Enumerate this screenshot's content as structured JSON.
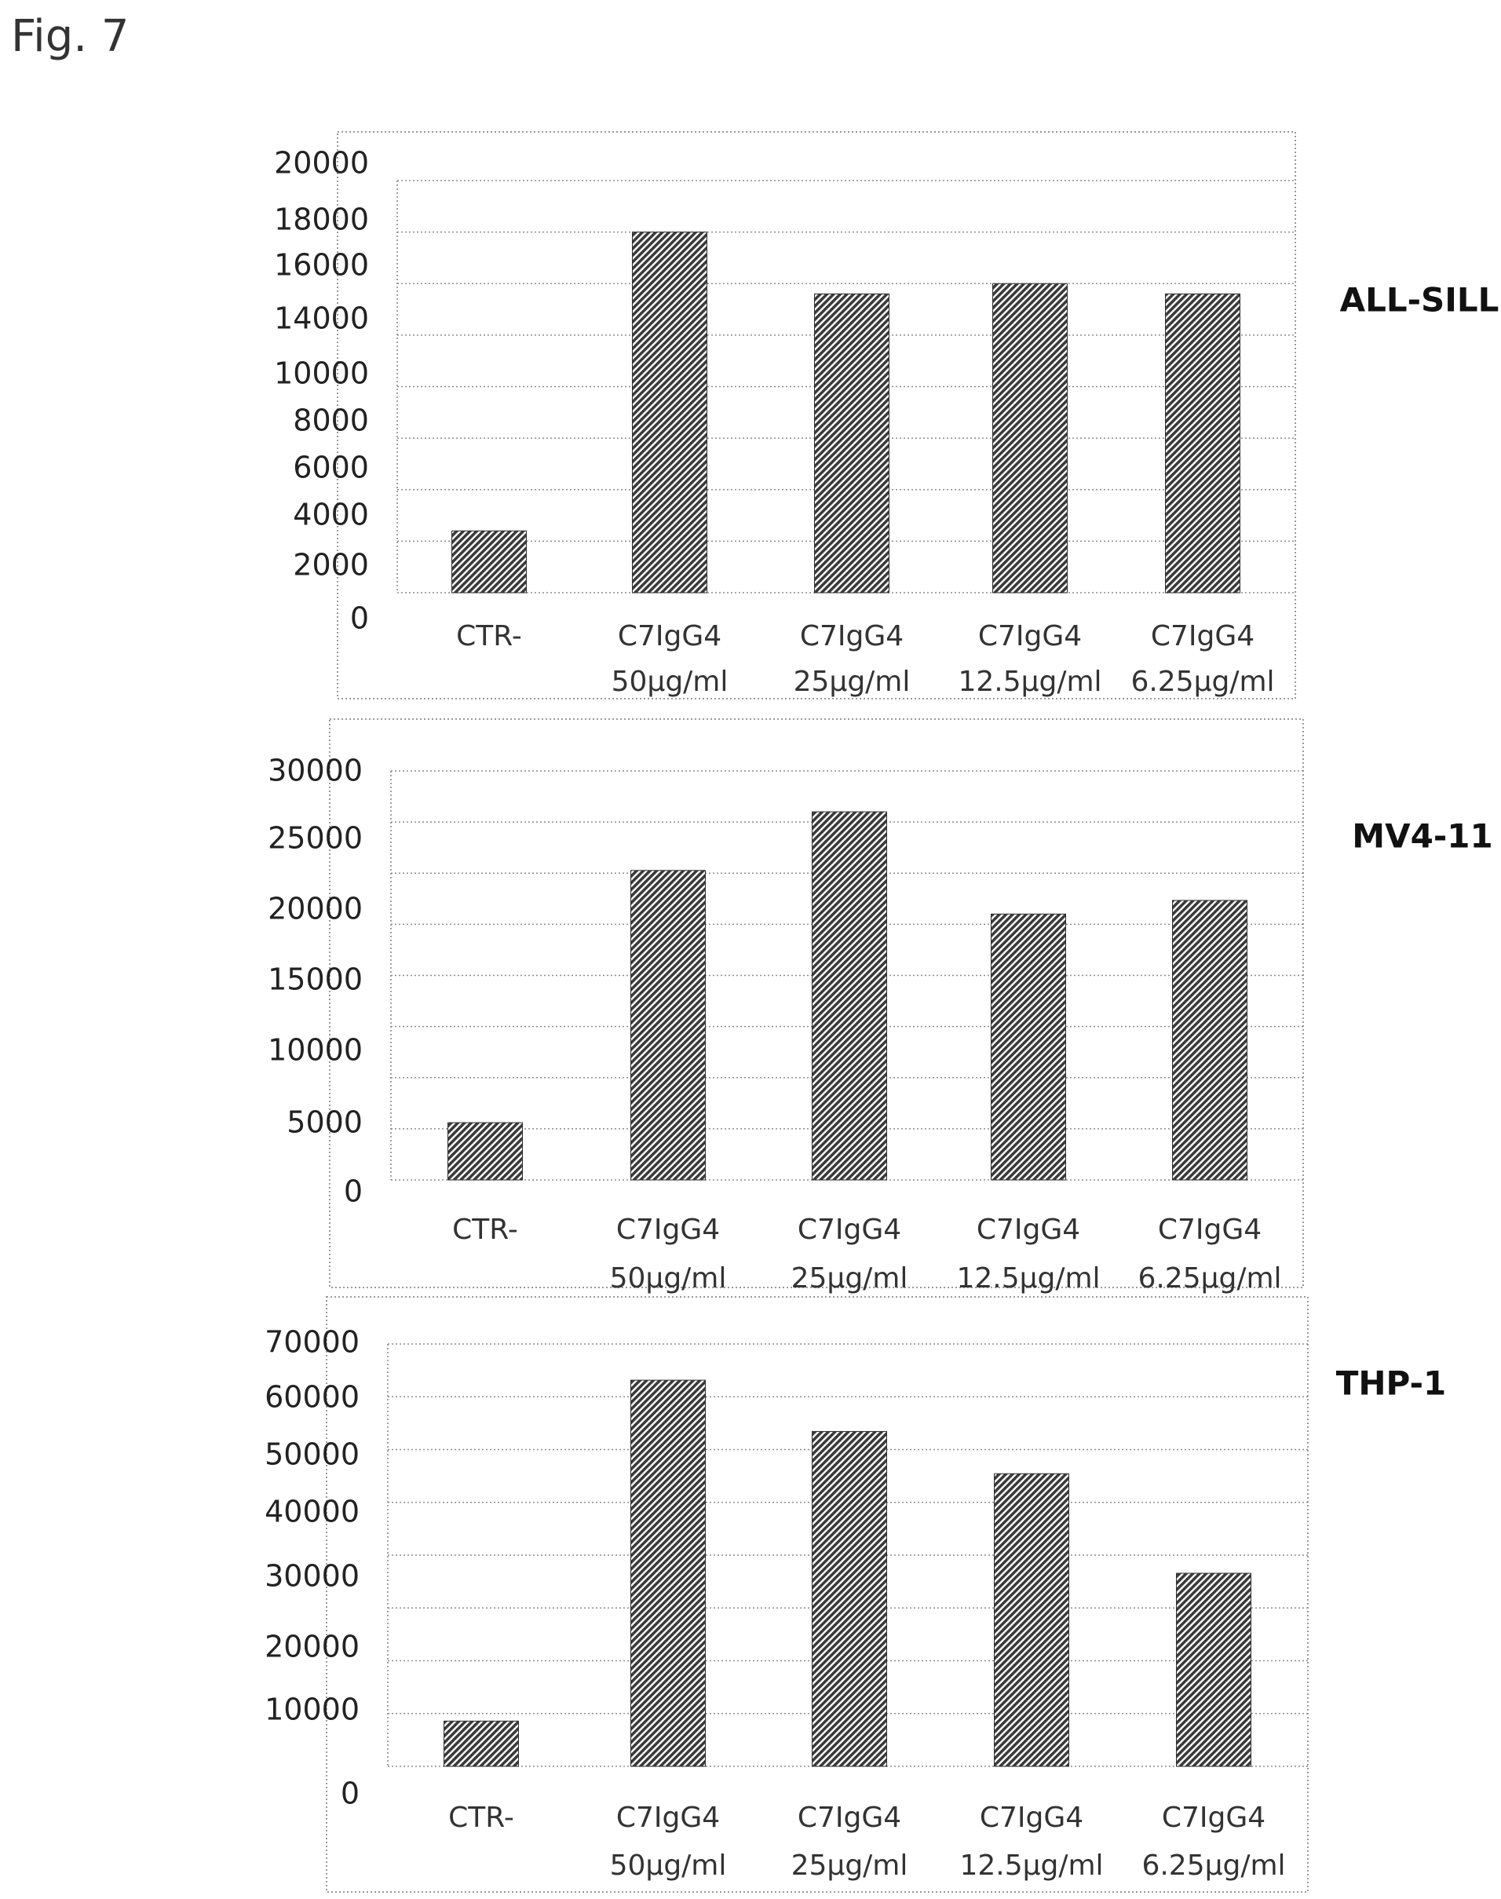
{
  "figure_label": "Fig. 7",
  "chart_data": [
    {
      "type": "bar",
      "title": "ALL-SILL",
      "categories": [
        [
          "CTR-"
        ],
        [
          "C7IgG4",
          "50µg/ml"
        ],
        [
          "C7IgG4",
          "25µg/ml"
        ],
        [
          "C7IgG4",
          "12.5µg/ml"
        ],
        [
          "C7IgG4",
          "6.25µg/ml"
        ]
      ],
      "values": [
        3000,
        17500,
        14500,
        15000,
        14500
      ],
      "yticks": [
        "0",
        "2000",
        "4000",
        "6000",
        "8000",
        "10000",
        "14000",
        "16000",
        "18000",
        "20000"
      ],
      "ylim": [
        0,
        20000
      ],
      "grid": true,
      "bar_pattern": "diagonal-hatch",
      "bar_color": "#3a3a3a"
    },
    {
      "type": "bar",
      "title": "MV4-11",
      "categories": [
        [
          "CTR-"
        ],
        [
          "C7IgG4",
          "50µg/ml"
        ],
        [
          "C7IgG4",
          "25µg/ml"
        ],
        [
          "C7IgG4",
          "12.5µg/ml"
        ],
        [
          "C7IgG4",
          "6.25µg/ml"
        ]
      ],
      "values": [
        4200,
        22700,
        27000,
        19500,
        20500
      ],
      "yticks": [
        "0",
        "5000",
        "10000",
        "15000",
        "20000",
        "25000",
        "30000"
      ],
      "ylim": [
        0,
        30000
      ],
      "grid": true,
      "bar_pattern": "diagonal-hatch",
      "bar_color": "#3a3a3a"
    },
    {
      "type": "bar",
      "title": "THP-1",
      "categories": [
        [
          "CTR-"
        ],
        [
          "C7IgG4",
          "50µg/ml"
        ],
        [
          "C7IgG4",
          "25µg/ml"
        ],
        [
          "C7IgG4",
          "12.5µg/ml"
        ],
        [
          "C7IgG4",
          "6.25µg/ml"
        ]
      ],
      "values": [
        7500,
        64000,
        55500,
        48500,
        32000
      ],
      "yticks": [
        "0",
        "10000",
        "20000",
        "30000",
        "40000",
        "50000",
        "60000",
        "70000"
      ],
      "ylim": [
        0,
        70000
      ],
      "grid": true,
      "bar_pattern": "diagonal-hatch",
      "bar_color": "#3a3a3a"
    }
  ]
}
